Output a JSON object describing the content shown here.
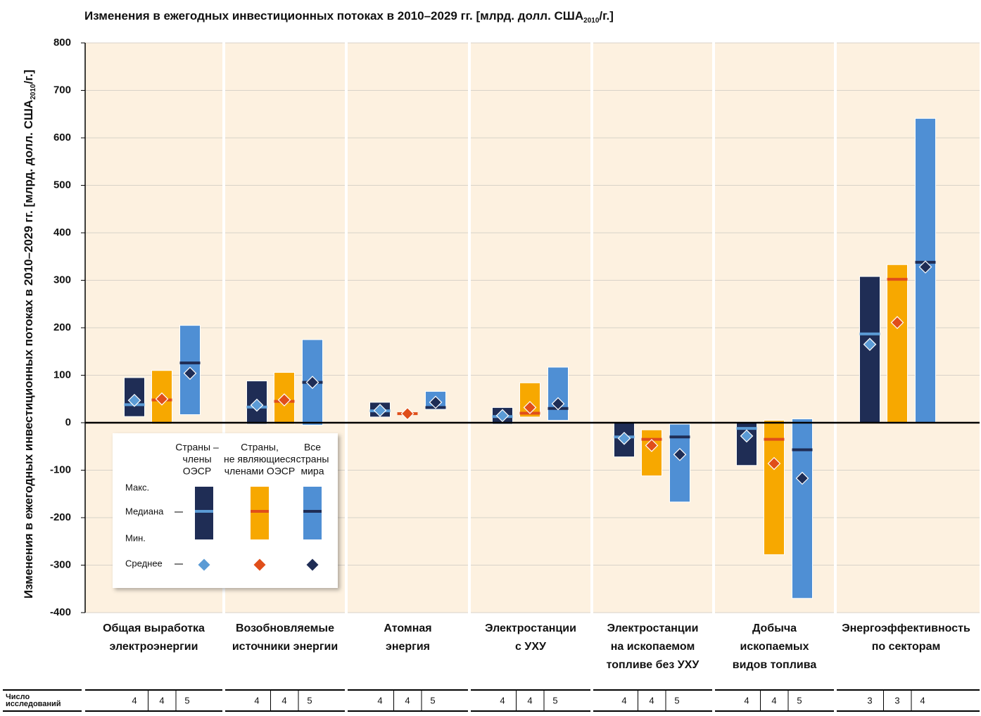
{
  "chart_data": {
    "type": "range",
    "title": {
      "text": "Изменения в ежегодных инвестиционных потоках в 2010–2029 гг. [млрд. долл. США",
      "sub": "2010",
      "end": "/г.]"
    },
    "y_label": {
      "text": "Изменения в ежегодных инвестиционных потоках в 2010–2029 гг. [млрд. долл. США",
      "sub": "2010",
      "end": "/г.]"
    },
    "categories": [
      [
        "Общая выработка",
        "электроэнергии"
      ],
      [
        "Возобновляемые",
        "источники энергии"
      ],
      [
        "Атомная",
        "энергия"
      ],
      [
        "Электростанции",
        "с УХУ"
      ],
      [
        "Электростанции",
        "на ископаемом",
        "топливе без УХУ"
      ],
      [
        "Добыча",
        "ископаемых",
        "видов топлива"
      ],
      [
        "Энергоэффективность",
        "по секторам"
      ]
    ],
    "ylim": [
      -400,
      800
    ],
    "yticks": [
      -400,
      -300,
      -200,
      -100,
      0,
      100,
      200,
      300,
      400,
      500,
      600,
      700,
      800
    ],
    "grid": true,
    "series": [
      {
        "name": [
          "Страны –",
          "члены",
          "ОЭСР"
        ],
        "color": "#1f2d55",
        "median_color": "#5b9bd5",
        "mean_color": "#5b9bd5",
        "max": [
          95,
          88,
          43,
          32,
          0,
          2,
          308
        ],
        "min": [
          13,
          -3,
          12,
          -3,
          -72,
          -90,
          0
        ],
        "median": [
          38,
          33,
          25,
          13,
          -30,
          -12,
          187
        ],
        "mean": [
          47,
          37,
          26,
          15,
          -33,
          -28,
          165
        ],
        "studies": [
          4,
          4,
          4,
          4,
          4,
          4,
          3
        ]
      },
      {
        "name": [
          "Страны,",
          "не являющиеся",
          "членами ОЭСР"
        ],
        "color": "#f7a800",
        "median_color": "#e04e1a",
        "mean_color": "#e04e1a",
        "max": [
          110,
          106,
          20,
          84,
          -15,
          5,
          333
        ],
        "min": [
          -3,
          -3,
          18,
          12,
          -112,
          -278,
          0
        ],
        "median": [
          48,
          45,
          19,
          20,
          -35,
          -35,
          302
        ],
        "mean": [
          50,
          48,
          19,
          32,
          -48,
          -86,
          211
        ],
        "studies": [
          4,
          4,
          4,
          4,
          4,
          4,
          3
        ]
      },
      {
        "name": [
          "Все",
          "страны",
          "мира"
        ],
        "color": "#4f8fd4",
        "median_color": "#1f2d55",
        "mean_color": "#1f2d55",
        "max": [
          205,
          175,
          66,
          117,
          -3,
          8,
          641
        ],
        "min": [
          17,
          -5,
          28,
          5,
          -167,
          -370,
          0
        ],
        "median": [
          126,
          85,
          32,
          30,
          -30,
          -57,
          338
        ],
        "mean": [
          104,
          85,
          43,
          40,
          -67,
          -117,
          328
        ],
        "studies": [
          5,
          5,
          5,
          5,
          5,
          5,
          4
        ]
      }
    ],
    "legend": {
      "stats": [
        "Макс.",
        "Медиана",
        "Мин.",
        "Среднее"
      ]
    },
    "studies_label": [
      "Число",
      "исследований"
    ]
  }
}
